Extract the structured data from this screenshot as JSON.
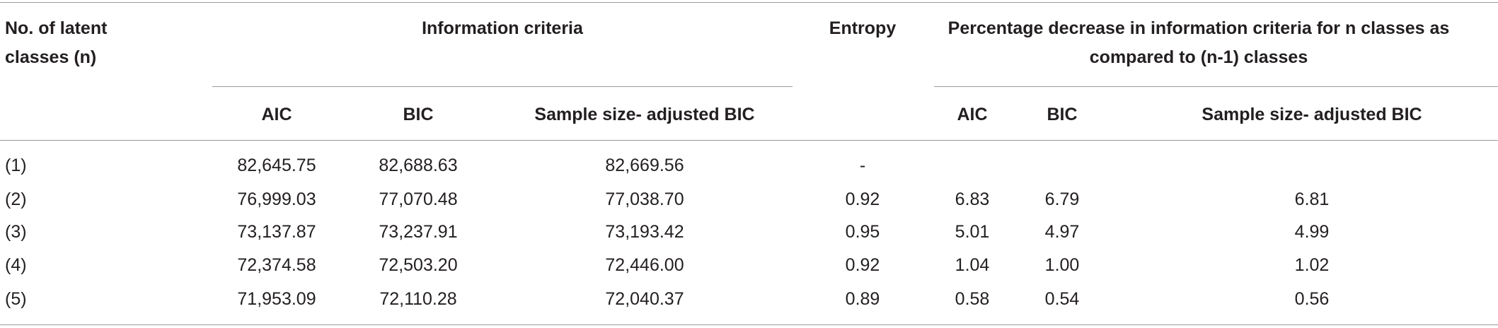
{
  "header": {
    "classes": "No. of latent classes (n)",
    "information_criteria": "Information criteria",
    "entropy": "Entropy",
    "percentage_decrease": "Percentage decrease in information criteria for n classes as compared to (n-1) classes",
    "sub_columns": [
      "AIC",
      "BIC",
      "Sample size- adjusted BIC",
      "AIC",
      "BIC",
      "Sample size- adjusted BIC"
    ]
  },
  "table": {
    "rows": [
      [
        "(1)",
        "82,645.75",
        "82,688.63",
        "82,669.56",
        "-"
      ],
      [
        "(2)",
        "76,999.03",
        "77,070.48",
        "77,038.70",
        "0.92",
        "6.83",
        "6.79",
        "6.81"
      ],
      [
        "(3)",
        "73,137.87",
        "73,237.91",
        "73,193.42",
        "0.95",
        "5.01",
        "4.97",
        "4.99"
      ],
      [
        "(4)",
        "72,374.58",
        "72,503.20",
        "72,446.00",
        "0.92",
        "1.04",
        "1.00",
        "1.02"
      ],
      [
        "(5)",
        "71,953.09",
        "72,110.28",
        "72,040.37",
        "0.89",
        "0.58",
        "0.54",
        "0.56"
      ]
    ]
  }
}
